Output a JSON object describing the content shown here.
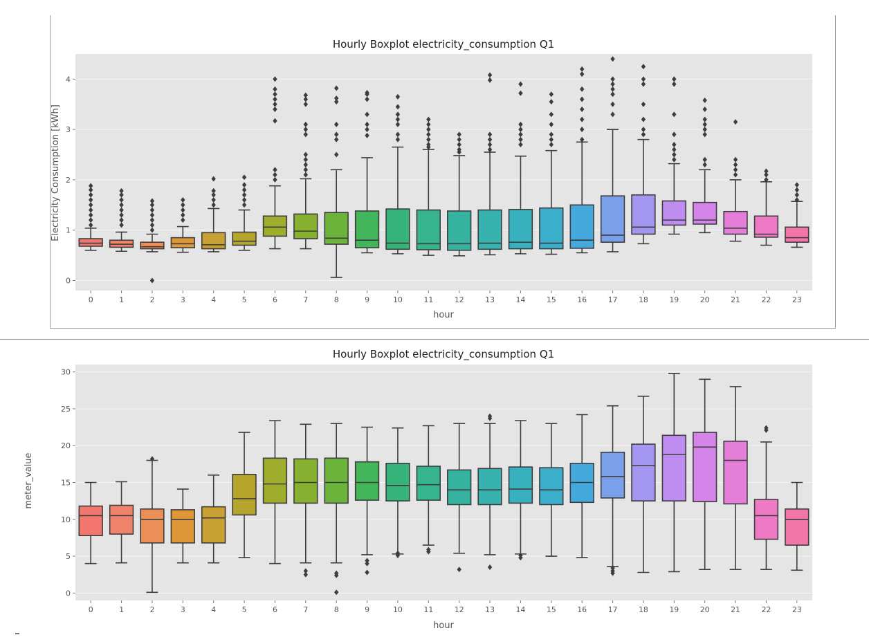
{
  "chart_data": [
    {
      "type": "box",
      "title": "Hourly Boxplot electricity_consumption Q1",
      "xlabel": "hour",
      "ylabel": "Electricity Consumption [kWh]",
      "categories": [
        "0",
        "1",
        "2",
        "3",
        "4",
        "5",
        "6",
        "7",
        "8",
        "9",
        "10",
        "11",
        "12",
        "13",
        "14",
        "15",
        "16",
        "17",
        "18",
        "19",
        "20",
        "21",
        "22",
        "23"
      ],
      "ylim": [
        -0.2,
        4.5
      ],
      "yticks": [
        "0",
        "1",
        "2",
        "3",
        "4"
      ],
      "grid": true,
      "boxes": [
        {
          "min": 0.6,
          "q1": 0.68,
          "median": 0.74,
          "q3": 0.83,
          "max": 1.04,
          "fliers": [
            1.1,
            1.2,
            1.3,
            1.4,
            1.5,
            1.6,
            1.7,
            1.8,
            1.88
          ]
        },
        {
          "min": 0.58,
          "q1": 0.66,
          "median": 0.72,
          "q3": 0.8,
          "max": 0.96,
          "fliers": [
            1.1,
            1.2,
            1.3,
            1.4,
            1.5,
            1.6,
            1.7,
            1.78
          ]
        },
        {
          "min": 0.57,
          "q1": 0.63,
          "median": 0.67,
          "q3": 0.76,
          "max": 0.92,
          "fliers": [
            0.0,
            1.0,
            1.1,
            1.2,
            1.3,
            1.4,
            1.5,
            1.58
          ]
        },
        {
          "min": 0.56,
          "q1": 0.65,
          "median": 0.73,
          "q3": 0.85,
          "max": 1.07,
          "fliers": [
            1.2,
            1.3,
            1.4,
            1.5,
            1.6
          ]
        },
        {
          "min": 0.57,
          "q1": 0.63,
          "median": 0.71,
          "q3": 0.95,
          "max": 1.43,
          "fliers": [
            1.5,
            1.6,
            1.7,
            1.78,
            2.02
          ]
        },
        {
          "min": 0.6,
          "q1": 0.7,
          "median": 0.78,
          "q3": 0.96,
          "max": 1.4,
          "fliers": [
            1.5,
            1.6,
            1.7,
            1.8,
            1.9,
            2.05
          ]
        },
        {
          "min": 0.63,
          "q1": 0.88,
          "median": 1.06,
          "q3": 1.28,
          "max": 1.88,
          "fliers": [
            2.0,
            2.1,
            2.2,
            3.17,
            3.4,
            3.5,
            3.6,
            3.7,
            3.8,
            4.0
          ]
        },
        {
          "min": 0.63,
          "q1": 0.83,
          "median": 0.98,
          "q3": 1.32,
          "max": 2.02,
          "fliers": [
            2.1,
            2.2,
            2.3,
            2.4,
            2.5,
            2.9,
            3.0,
            3.1,
            3.5,
            3.6,
            3.68
          ]
        },
        {
          "min": 0.06,
          "q1": 0.72,
          "median": 0.84,
          "q3": 1.35,
          "max": 2.2,
          "fliers": [
            2.5,
            2.8,
            2.9,
            3.1,
            3.55,
            3.62,
            3.82
          ]
        },
        {
          "min": 0.55,
          "q1": 0.65,
          "median": 0.8,
          "q3": 1.38,
          "max": 2.44,
          "fliers": [
            2.88,
            3.0,
            3.1,
            3.3,
            3.6,
            3.7,
            3.73
          ]
        },
        {
          "min": 0.53,
          "q1": 0.62,
          "median": 0.74,
          "q3": 1.42,
          "max": 2.65,
          "fliers": [
            2.8,
            2.9,
            3.1,
            3.2,
            3.3,
            3.45,
            3.65
          ]
        },
        {
          "min": 0.5,
          "q1": 0.61,
          "median": 0.73,
          "q3": 1.4,
          "max": 2.6,
          "fliers": [
            2.65,
            2.7,
            2.8,
            2.9,
            3.0,
            3.1,
            3.2
          ]
        },
        {
          "min": 0.49,
          "q1": 0.6,
          "median": 0.73,
          "q3": 1.38,
          "max": 2.48,
          "fliers": [
            2.55,
            2.6,
            2.7,
            2.8,
            2.9
          ]
        },
        {
          "min": 0.51,
          "q1": 0.62,
          "median": 0.74,
          "q3": 1.4,
          "max": 2.55,
          "fliers": [
            2.6,
            2.7,
            2.8,
            2.9,
            3.98,
            4.08
          ]
        },
        {
          "min": 0.53,
          "q1": 0.63,
          "median": 0.76,
          "q3": 1.41,
          "max": 2.47,
          "fliers": [
            2.7,
            2.8,
            2.9,
            3.0,
            3.1,
            3.72,
            3.9
          ]
        },
        {
          "min": 0.52,
          "q1": 0.63,
          "median": 0.74,
          "q3": 1.44,
          "max": 2.58,
          "fliers": [
            2.7,
            2.8,
            2.9,
            3.1,
            3.3,
            3.55,
            3.7
          ]
        },
        {
          "min": 0.55,
          "q1": 0.64,
          "median": 0.8,
          "q3": 1.5,
          "max": 2.75,
          "fliers": [
            2.8,
            3.0,
            3.2,
            3.4,
            3.6,
            3.8,
            4.1,
            4.2
          ]
        },
        {
          "min": 0.57,
          "q1": 0.76,
          "median": 0.9,
          "q3": 1.68,
          "max": 3.0,
          "fliers": [
            3.3,
            3.5,
            3.7,
            3.8,
            3.9,
            4.0,
            4.4
          ]
        },
        {
          "min": 0.73,
          "q1": 0.92,
          "median": 1.06,
          "q3": 1.7,
          "max": 2.8,
          "fliers": [
            2.9,
            3.0,
            3.2,
            3.5,
            3.9,
            4.0,
            4.25
          ]
        },
        {
          "min": 0.92,
          "q1": 1.1,
          "median": 1.2,
          "q3": 1.58,
          "max": 2.32,
          "fliers": [
            2.4,
            2.5,
            2.6,
            2.7,
            2.9,
            3.3,
            3.9,
            4.0
          ]
        },
        {
          "min": 0.95,
          "q1": 1.12,
          "median": 1.2,
          "q3": 1.55,
          "max": 2.2,
          "fliers": [
            2.3,
            2.4,
            2.9,
            3.0,
            3.1,
            3.2,
            3.4,
            3.58
          ]
        },
        {
          "min": 0.78,
          "q1": 0.92,
          "median": 1.04,
          "q3": 1.37,
          "max": 2.0,
          "fliers": [
            2.1,
            2.2,
            2.3,
            2.4,
            3.15
          ]
        },
        {
          "min": 0.7,
          "q1": 0.86,
          "median": 0.92,
          "q3": 1.28,
          "max": 1.96,
          "fliers": [
            2.0,
            2.1,
            2.17
          ]
        },
        {
          "min": 0.66,
          "q1": 0.76,
          "median": 0.85,
          "q3": 1.06,
          "max": 1.57,
          "fliers": [
            1.6,
            1.7,
            1.8,
            1.9
          ]
        }
      ]
    },
    {
      "type": "box",
      "title": "Hourly Boxplot electricity_consumption Q1",
      "xlabel": "hour",
      "ylabel": "meter_value",
      "categories": [
        "0",
        "1",
        "2",
        "3",
        "4",
        "5",
        "6",
        "7",
        "8",
        "9",
        "10",
        "11",
        "12",
        "13",
        "14",
        "15",
        "16",
        "17",
        "18",
        "19",
        "20",
        "21",
        "22",
        "23"
      ],
      "ylim": [
        -1,
        31
      ],
      "yticks": [
        "0",
        "5",
        "10",
        "15",
        "20",
        "25",
        "30"
      ],
      "grid": true,
      "boxes": [
        {
          "min": 4.0,
          "q1": 7.8,
          "median": 10.5,
          "q3": 11.8,
          "max": 15.0,
          "fliers": []
        },
        {
          "min": 4.1,
          "q1": 8.0,
          "median": 10.5,
          "q3": 11.9,
          "max": 15.1,
          "fliers": []
        },
        {
          "min": 0.1,
          "q1": 6.8,
          "median": 10.0,
          "q3": 11.4,
          "max": 18.0,
          "fliers": [
            18.2
          ]
        },
        {
          "min": 4.1,
          "q1": 6.8,
          "median": 10.0,
          "q3": 11.3,
          "max": 14.1,
          "fliers": []
        },
        {
          "min": 4.1,
          "q1": 6.8,
          "median": 10.2,
          "q3": 11.7,
          "max": 16.0,
          "fliers": []
        },
        {
          "min": 4.8,
          "q1": 10.6,
          "median": 12.8,
          "q3": 16.1,
          "max": 21.8,
          "fliers": []
        },
        {
          "min": 4.0,
          "q1": 12.2,
          "median": 14.8,
          "q3": 18.3,
          "max": 23.4,
          "fliers": []
        },
        {
          "min": 4.1,
          "q1": 12.2,
          "median": 15.0,
          "q3": 18.2,
          "max": 22.9,
          "fliers": [
            2.5,
            3.0
          ]
        },
        {
          "min": 4.1,
          "q1": 12.2,
          "median": 15.0,
          "q3": 18.3,
          "max": 23.0,
          "fliers": [
            0.1,
            2.4,
            2.7
          ]
        },
        {
          "min": 5.2,
          "q1": 12.6,
          "median": 15.0,
          "q3": 17.8,
          "max": 22.5,
          "fliers": [
            2.8,
            4.0,
            4.4
          ]
        },
        {
          "min": 5.3,
          "q1": 12.5,
          "median": 14.6,
          "q3": 17.6,
          "max": 22.4,
          "fliers": [
            5.1,
            5.4
          ]
        },
        {
          "min": 6.5,
          "q1": 12.6,
          "median": 14.7,
          "q3": 17.2,
          "max": 22.7,
          "fliers": [
            5.6,
            5.9
          ]
        },
        {
          "min": 5.4,
          "q1": 12.0,
          "median": 14.0,
          "q3": 16.7,
          "max": 23.0,
          "fliers": [
            3.2
          ]
        },
        {
          "min": 5.2,
          "q1": 12.0,
          "median": 14.0,
          "q3": 16.9,
          "max": 23.0,
          "fliers": [
            3.5,
            23.7,
            24.0
          ]
        },
        {
          "min": 5.3,
          "q1": 12.2,
          "median": 14.1,
          "q3": 17.1,
          "max": 23.4,
          "fliers": [
            4.8,
            5.1
          ]
        },
        {
          "min": 5.0,
          "q1": 12.0,
          "median": 14.0,
          "q3": 17.0,
          "max": 23.0,
          "fliers": []
        },
        {
          "min": 4.8,
          "q1": 12.3,
          "median": 15.0,
          "q3": 17.6,
          "max": 24.2,
          "fliers": []
        },
        {
          "min": 3.6,
          "q1": 12.9,
          "median": 15.8,
          "q3": 19.1,
          "max": 25.4,
          "fliers": [
            2.7,
            3.0,
            3.4
          ]
        },
        {
          "min": 2.8,
          "q1": 12.5,
          "median": 17.3,
          "q3": 20.2,
          "max": 26.7,
          "fliers": []
        },
        {
          "min": 2.9,
          "q1": 12.5,
          "median": 18.8,
          "q3": 21.4,
          "max": 29.8,
          "fliers": []
        },
        {
          "min": 3.2,
          "q1": 12.4,
          "median": 19.8,
          "q3": 21.8,
          "max": 29.0,
          "fliers": []
        },
        {
          "min": 3.2,
          "q1": 12.1,
          "median": 18.0,
          "q3": 20.6,
          "max": 28.0,
          "fliers": []
        },
        {
          "min": 3.2,
          "q1": 7.3,
          "median": 10.5,
          "q3": 12.7,
          "max": 20.5,
          "fliers": [
            22.1,
            22.4
          ]
        },
        {
          "min": 3.1,
          "q1": 6.5,
          "median": 10.0,
          "q3": 11.4,
          "max": 15.0,
          "fliers": []
        }
      ]
    }
  ],
  "colors": {
    "palette": [
      "#f4776f",
      "#f0836c",
      "#ec8e58",
      "#de9637",
      "#c9a033",
      "#b6a52c",
      "#9ead2c",
      "#85b030",
      "#6cb33c",
      "#43b65c",
      "#35b479",
      "#36b48d",
      "#36b3a0",
      "#37b2ae",
      "#39b0bd",
      "#3aaecb",
      "#45a8dc",
      "#7aa0ea",
      "#a396f0",
      "#bf8df0",
      "#d585ea",
      "#e47ed9",
      "#ee79c5",
      "#f376a8"
    ],
    "panel": "#e5e5e5",
    "grid": "#f5f5f5",
    "line": "#3d3d3d"
  }
}
